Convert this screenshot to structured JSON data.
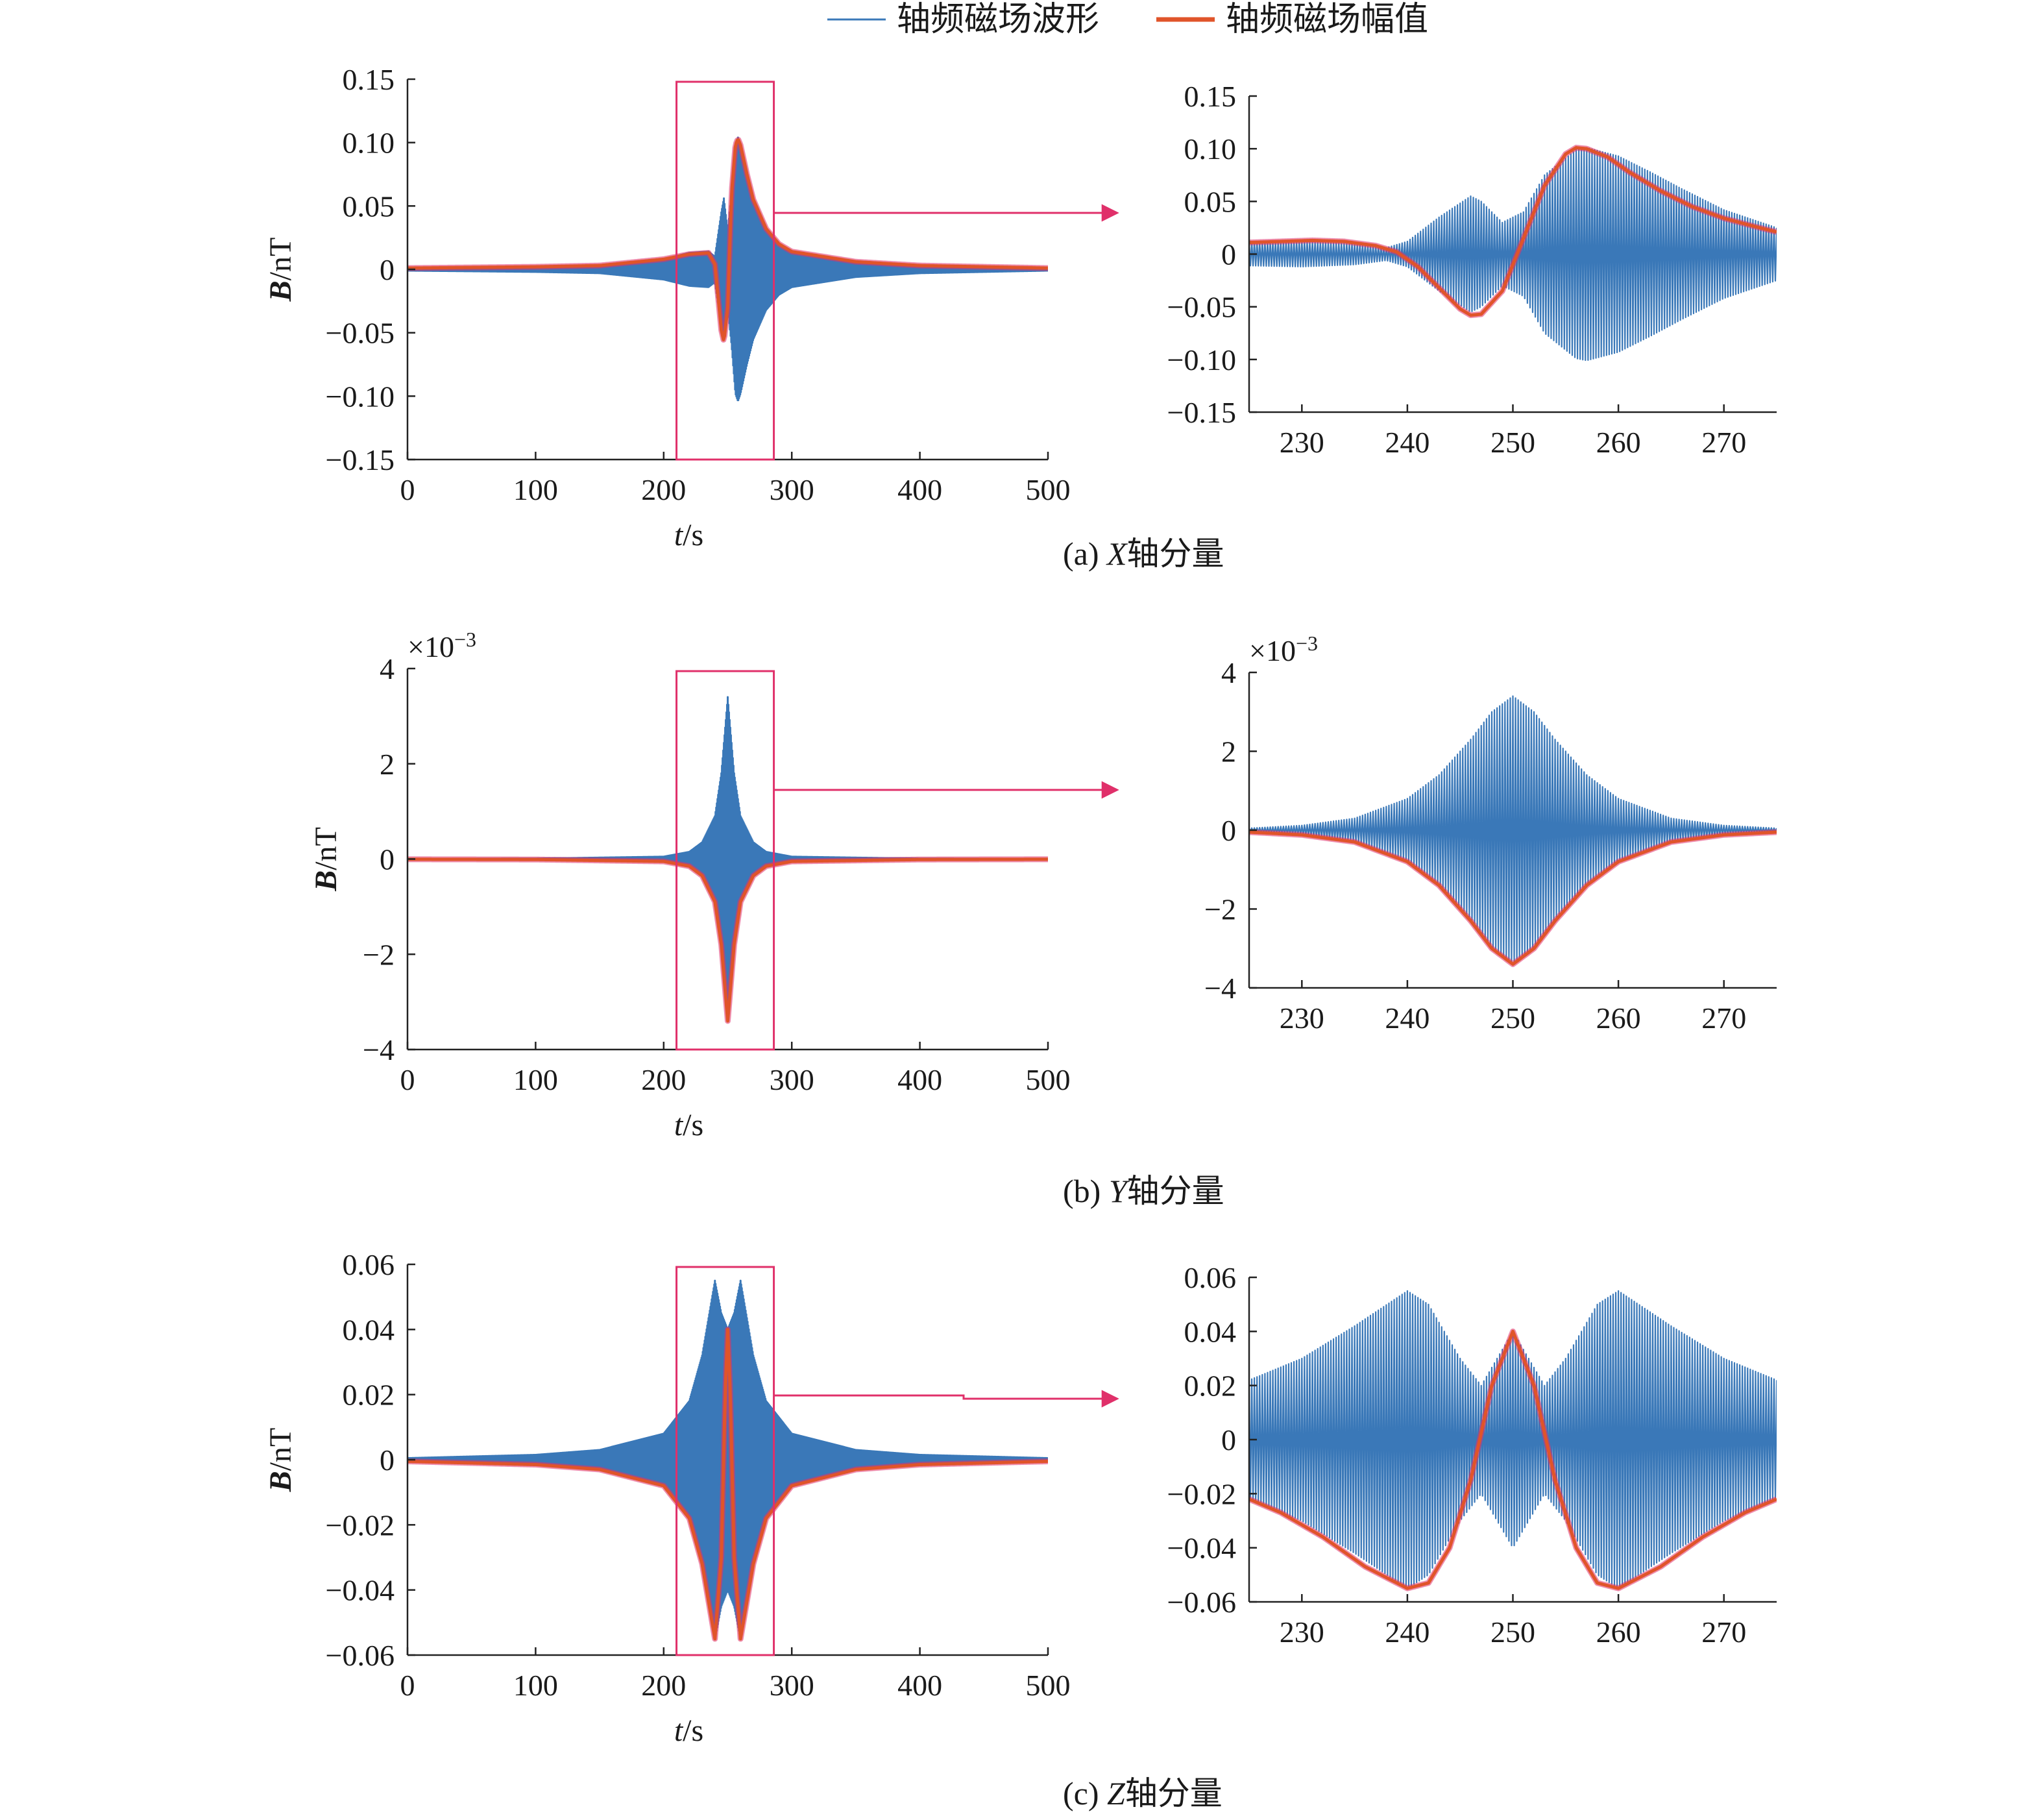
{
  "legend": {
    "waveform_label": "轴频磁场波形",
    "amplitude_label": "轴频磁场幅值",
    "waveform_color": "#3a78b8",
    "amplitude_color": "#e0542a",
    "highlight_color": "#e0306a"
  },
  "chart_data": [
    {
      "type": "line",
      "view": "full",
      "component": "x",
      "xlabel_var": "t",
      "xlabel_unit": "/s",
      "ylabel_var": "B",
      "ylabel_unit": "/nT",
      "xlim": [
        0,
        500
      ],
      "ylim": [
        -0.15,
        0.15
      ],
      "x_ticks": [
        0,
        100,
        200,
        300,
        400,
        500
      ],
      "x_tick_labels": [
        "0",
        "100",
        "200",
        "300",
        "400",
        "500"
      ],
      "y_ticks": [
        -0.15,
        -0.1,
        -0.05,
        0,
        0.05,
        0.1,
        0.15
      ],
      "y_tick_labels": [
        "−0.15",
        "−0.10",
        "−0.05",
        "0",
        "0.05",
        "0.10",
        "0.15"
      ],
      "zoom_box_x": [
        210,
        286
      ],
      "series": [
        {
          "name": "轴频磁场波形",
          "x": [
            0,
            100,
            150,
            200,
            220,
            235,
            240,
            245,
            247,
            250,
            253,
            256,
            258,
            260,
            265,
            270,
            280,
            290,
            300,
            350,
            400,
            500
          ],
          "y": [
            0.001,
            0.002,
            0.003,
            0.008,
            0.013,
            0.014,
            0.01,
            0.045,
            0.056,
            0.03,
            0.06,
            0.098,
            0.104,
            0.098,
            0.075,
            0.055,
            0.032,
            0.02,
            0.014,
            0.006,
            0.003,
            0.001
          ]
        },
        {
          "name": "轴频磁场幅值",
          "x": [
            0,
            100,
            150,
            200,
            220,
            235,
            240,
            245,
            247,
            250,
            253,
            256,
            258,
            260,
            265,
            270,
            280,
            290,
            300,
            350,
            400,
            500
          ],
          "y": [
            0.001,
            0.002,
            0.003,
            0.008,
            0.012,
            0.013,
            0.004,
            -0.048,
            -0.057,
            -0.03,
            0.06,
            0.098,
            0.103,
            0.098,
            0.075,
            0.055,
            0.032,
            0.02,
            0.014,
            0.006,
            0.003,
            0.001
          ]
        }
      ]
    },
    {
      "type": "line",
      "view": "zoom",
      "component": "x",
      "xlim": [
        225,
        275
      ],
      "ylim": [
        -0.15,
        0.15
      ],
      "x_ticks": [
        230,
        240,
        250,
        260,
        270
      ],
      "x_tick_labels": [
        "230",
        "240",
        "250",
        "260",
        "270"
      ],
      "y_ticks": [
        -0.15,
        -0.1,
        -0.05,
        0,
        0.05,
        0.1,
        0.15
      ],
      "y_tick_labels": [
        "−0.15",
        "−0.10",
        "−0.05",
        "0",
        "0.05",
        "0.10",
        "0.15"
      ],
      "series": [
        {
          "name": "轴频磁场波形",
          "x": [
            225,
            230,
            235,
            238,
            240,
            243,
            246,
            247,
            249,
            251,
            253,
            256,
            257,
            260,
            263,
            266,
            270,
            275
          ],
          "y": [
            0.011,
            0.012,
            0.01,
            0.006,
            0.012,
            0.035,
            0.055,
            0.05,
            0.03,
            0.04,
            0.075,
            0.099,
            0.101,
            0.093,
            0.078,
            0.062,
            0.042,
            0.025
          ]
        },
        {
          "name": "轴频磁场幅值",
          "x": [
            225,
            228,
            231,
            234,
            237,
            239,
            241,
            243,
            245,
            246,
            247,
            249,
            251,
            253,
            255,
            256,
            257,
            259,
            261,
            264,
            267,
            270,
            273,
            275
          ],
          "y": [
            0.011,
            0.012,
            0.013,
            0.012,
            0.008,
            0.002,
            -0.012,
            -0.032,
            -0.052,
            -0.058,
            -0.057,
            -0.035,
            0.015,
            0.065,
            0.095,
            0.101,
            0.1,
            0.092,
            0.078,
            0.06,
            0.045,
            0.034,
            0.026,
            0.021
          ]
        }
      ]
    },
    {
      "type": "line",
      "view": "full",
      "component": "y",
      "xlabel_var": "t",
      "xlabel_unit": "/s",
      "ylabel_var": "B",
      "ylabel_unit": "/nT",
      "xlim": [
        0,
        500
      ],
      "ylim": [
        -4,
        4
      ],
      "scale_base": "×10",
      "scale_exp": "−3",
      "x_ticks": [
        0,
        100,
        200,
        300,
        400,
        500
      ],
      "x_tick_labels": [
        "0",
        "100",
        "200",
        "300",
        "400",
        "500"
      ],
      "y_ticks": [
        -4,
        -2,
        0,
        2,
        4
      ],
      "y_tick_labels": [
        "−4",
        "−2",
        "0",
        "2",
        "4"
      ],
      "zoom_box_x": [
        210,
        286
      ],
      "series": [
        {
          "name": "轴频磁场波形",
          "x": [
            0,
            100,
            200,
            220,
            230,
            240,
            245,
            250,
            255,
            260,
            270,
            280,
            300,
            400,
            500
          ],
          "y": [
            0.005,
            0.01,
            0.05,
            0.15,
            0.35,
            0.9,
            1.8,
            3.4,
            1.8,
            0.9,
            0.35,
            0.15,
            0.05,
            0.01,
            0.005
          ]
        },
        {
          "name": "轴频磁场幅值",
          "x": [
            0,
            100,
            200,
            220,
            230,
            240,
            245,
            250,
            255,
            260,
            270,
            280,
            300,
            400,
            500
          ],
          "y": [
            -0.005,
            -0.01,
            -0.05,
            -0.15,
            -0.35,
            -0.9,
            -1.8,
            -3.4,
            -1.8,
            -0.9,
            -0.35,
            -0.15,
            -0.05,
            -0.01,
            -0.005
          ]
        }
      ]
    },
    {
      "type": "line",
      "view": "zoom",
      "component": "y",
      "xlim": [
        225,
        275
      ],
      "ylim": [
        -4,
        4
      ],
      "scale_base": "×10",
      "scale_exp": "−3",
      "x_ticks": [
        230,
        240,
        250,
        260,
        270
      ],
      "x_tick_labels": [
        "230",
        "240",
        "250",
        "260",
        "270"
      ],
      "y_ticks": [
        -4,
        -2,
        0,
        2,
        4
      ],
      "y_tick_labels": [
        "−4",
        "−2",
        "0",
        "2",
        "4"
      ],
      "series": [
        {
          "name": "轴频磁场波形",
          "x": [
            225,
            230,
            235,
            240,
            243,
            246,
            248,
            250,
            252,
            254,
            257,
            260,
            265,
            270,
            275
          ],
          "y": [
            0.05,
            0.12,
            0.3,
            0.8,
            1.4,
            2.3,
            3.0,
            3.4,
            3.0,
            2.3,
            1.4,
            0.8,
            0.3,
            0.12,
            0.05
          ]
        },
        {
          "name": "轴频磁场幅值",
          "x": [
            225,
            230,
            235,
            240,
            243,
            246,
            248,
            250,
            252,
            254,
            257,
            260,
            265,
            270,
            275
          ],
          "y": [
            -0.05,
            -0.12,
            -0.3,
            -0.8,
            -1.4,
            -2.3,
            -3.0,
            -3.4,
            -3.0,
            -2.3,
            -1.4,
            -0.8,
            -0.3,
            -0.12,
            -0.05
          ]
        }
      ]
    },
    {
      "type": "line",
      "view": "full",
      "component": "z",
      "xlabel_var": "t",
      "xlabel_unit": "/s",
      "ylabel_var": "B",
      "ylabel_unit": "/nT",
      "xlim": [
        0,
        500
      ],
      "ylim": [
        -0.06,
        0.06
      ],
      "x_ticks": [
        0,
        100,
        200,
        300,
        400,
        500
      ],
      "x_tick_labels": [
        "0",
        "100",
        "200",
        "300",
        "400",
        "500"
      ],
      "y_ticks": [
        -0.06,
        -0.04,
        -0.02,
        0,
        0.02,
        0.04,
        0.06
      ],
      "y_tick_labels": [
        "−0.06",
        "−0.04",
        "−0.02",
        "0",
        "0.02",
        "0.04",
        "0.06"
      ],
      "zoom_box_x": [
        210,
        286
      ],
      "series": [
        {
          "name": "轴频磁场波形",
          "x": [
            0,
            100,
            150,
            200,
            220,
            230,
            240,
            245,
            250,
            255,
            260,
            270,
            280,
            300,
            350,
            400,
            500
          ],
          "y": [
            0.0005,
            0.0015,
            0.003,
            0.008,
            0.018,
            0.032,
            0.055,
            0.045,
            0.04,
            0.045,
            0.055,
            0.032,
            0.018,
            0.008,
            0.003,
            0.0015,
            0.0005
          ]
        },
        {
          "name": "轴频磁场幅值",
          "x": [
            0,
            100,
            150,
            200,
            220,
            230,
            240,
            245,
            248,
            250,
            252,
            255,
            260,
            270,
            280,
            300,
            350,
            400,
            500
          ],
          "y": [
            -0.0005,
            -0.0015,
            -0.003,
            -0.008,
            -0.018,
            -0.032,
            -0.055,
            -0.03,
            0.02,
            0.04,
            0.02,
            -0.03,
            -0.055,
            -0.032,
            -0.018,
            -0.008,
            -0.003,
            -0.0015,
            -0.0005
          ]
        }
      ]
    },
    {
      "type": "line",
      "view": "zoom",
      "component": "z",
      "xlim": [
        225,
        275
      ],
      "ylim": [
        -0.06,
        0.06
      ],
      "x_ticks": [
        230,
        240,
        250,
        260,
        270
      ],
      "x_tick_labels": [
        "230",
        "240",
        "250",
        "260",
        "270"
      ],
      "y_ticks": [
        -0.06,
        -0.04,
        -0.02,
        0,
        0.02,
        0.04,
        0.06
      ],
      "y_tick_labels": [
        "−0.06",
        "−0.04",
        "−0.02",
        "0",
        "0.02",
        "0.04",
        "0.06"
      ],
      "series": [
        {
          "name": "轴频磁场波形",
          "x": [
            225,
            230,
            235,
            240,
            242,
            245,
            247,
            250,
            253,
            255,
            258,
            260,
            265,
            270,
            275
          ],
          "y": [
            0.022,
            0.03,
            0.042,
            0.055,
            0.05,
            0.03,
            0.02,
            0.04,
            0.02,
            0.03,
            0.05,
            0.055,
            0.042,
            0.03,
            0.022
          ]
        },
        {
          "name": "轴频磁场幅值",
          "x": [
            225,
            228,
            232,
            236,
            240,
            242,
            244,
            246,
            248,
            250,
            252,
            254,
            256,
            258,
            260,
            264,
            268,
            272,
            275
          ],
          "y": [
            -0.022,
            -0.027,
            -0.036,
            -0.047,
            -0.055,
            -0.053,
            -0.04,
            -0.015,
            0.02,
            0.04,
            0.02,
            -0.015,
            -0.04,
            -0.053,
            -0.055,
            -0.047,
            -0.036,
            -0.027,
            -0.022
          ]
        }
      ]
    }
  ],
  "captions": [
    {
      "prefix": "(a) ",
      "axis": "X",
      "suffix": "轴分量"
    },
    {
      "prefix": "(b) ",
      "axis": "Y",
      "suffix": "轴分量"
    },
    {
      "prefix": "(c) ",
      "axis": "Z",
      "suffix": "轴分量"
    }
  ]
}
